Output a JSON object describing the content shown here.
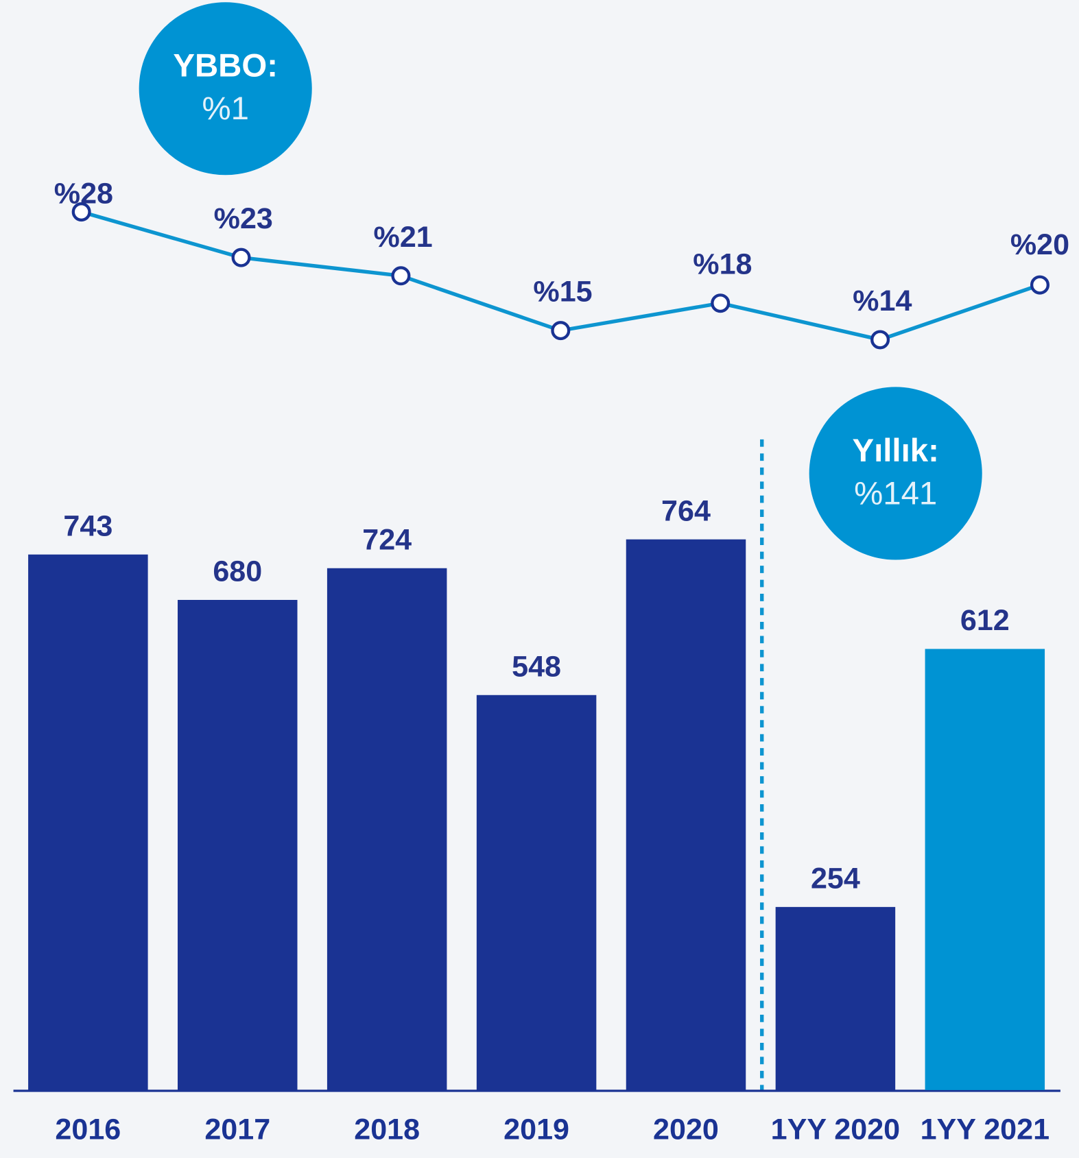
{
  "chart_data": [
    {
      "type": "line",
      "values": [
        28,
        23,
        21,
        15,
        18,
        14,
        20
      ],
      "value_labels": [
        "%28",
        "%23",
        "%21",
        "%15",
        "%18",
        "%14",
        "%20"
      ],
      "color": "#0d95d0",
      "ylim": [
        0,
        50
      ],
      "annotations": [
        {
          "title": "YBBO:",
          "text": "%1"
        }
      ]
    },
    {
      "type": "bar",
      "categories": [
        "2016",
        "2017",
        "2018",
        "2019",
        "2020",
        "1YY 2020",
        "1YY 2021"
      ],
      "values": [
        743,
        680,
        724,
        548,
        764,
        254,
        612
      ],
      "colors": [
        "#1a3393",
        "#1a3393",
        "#1a3393",
        "#1a3393",
        "#1a3393",
        "#1a3393",
        "#0093d3"
      ],
      "ylim": [
        0,
        1500
      ],
      "annotations": [
        {
          "title": "Yıllık:",
          "text": "%141"
        }
      ]
    }
  ]
}
